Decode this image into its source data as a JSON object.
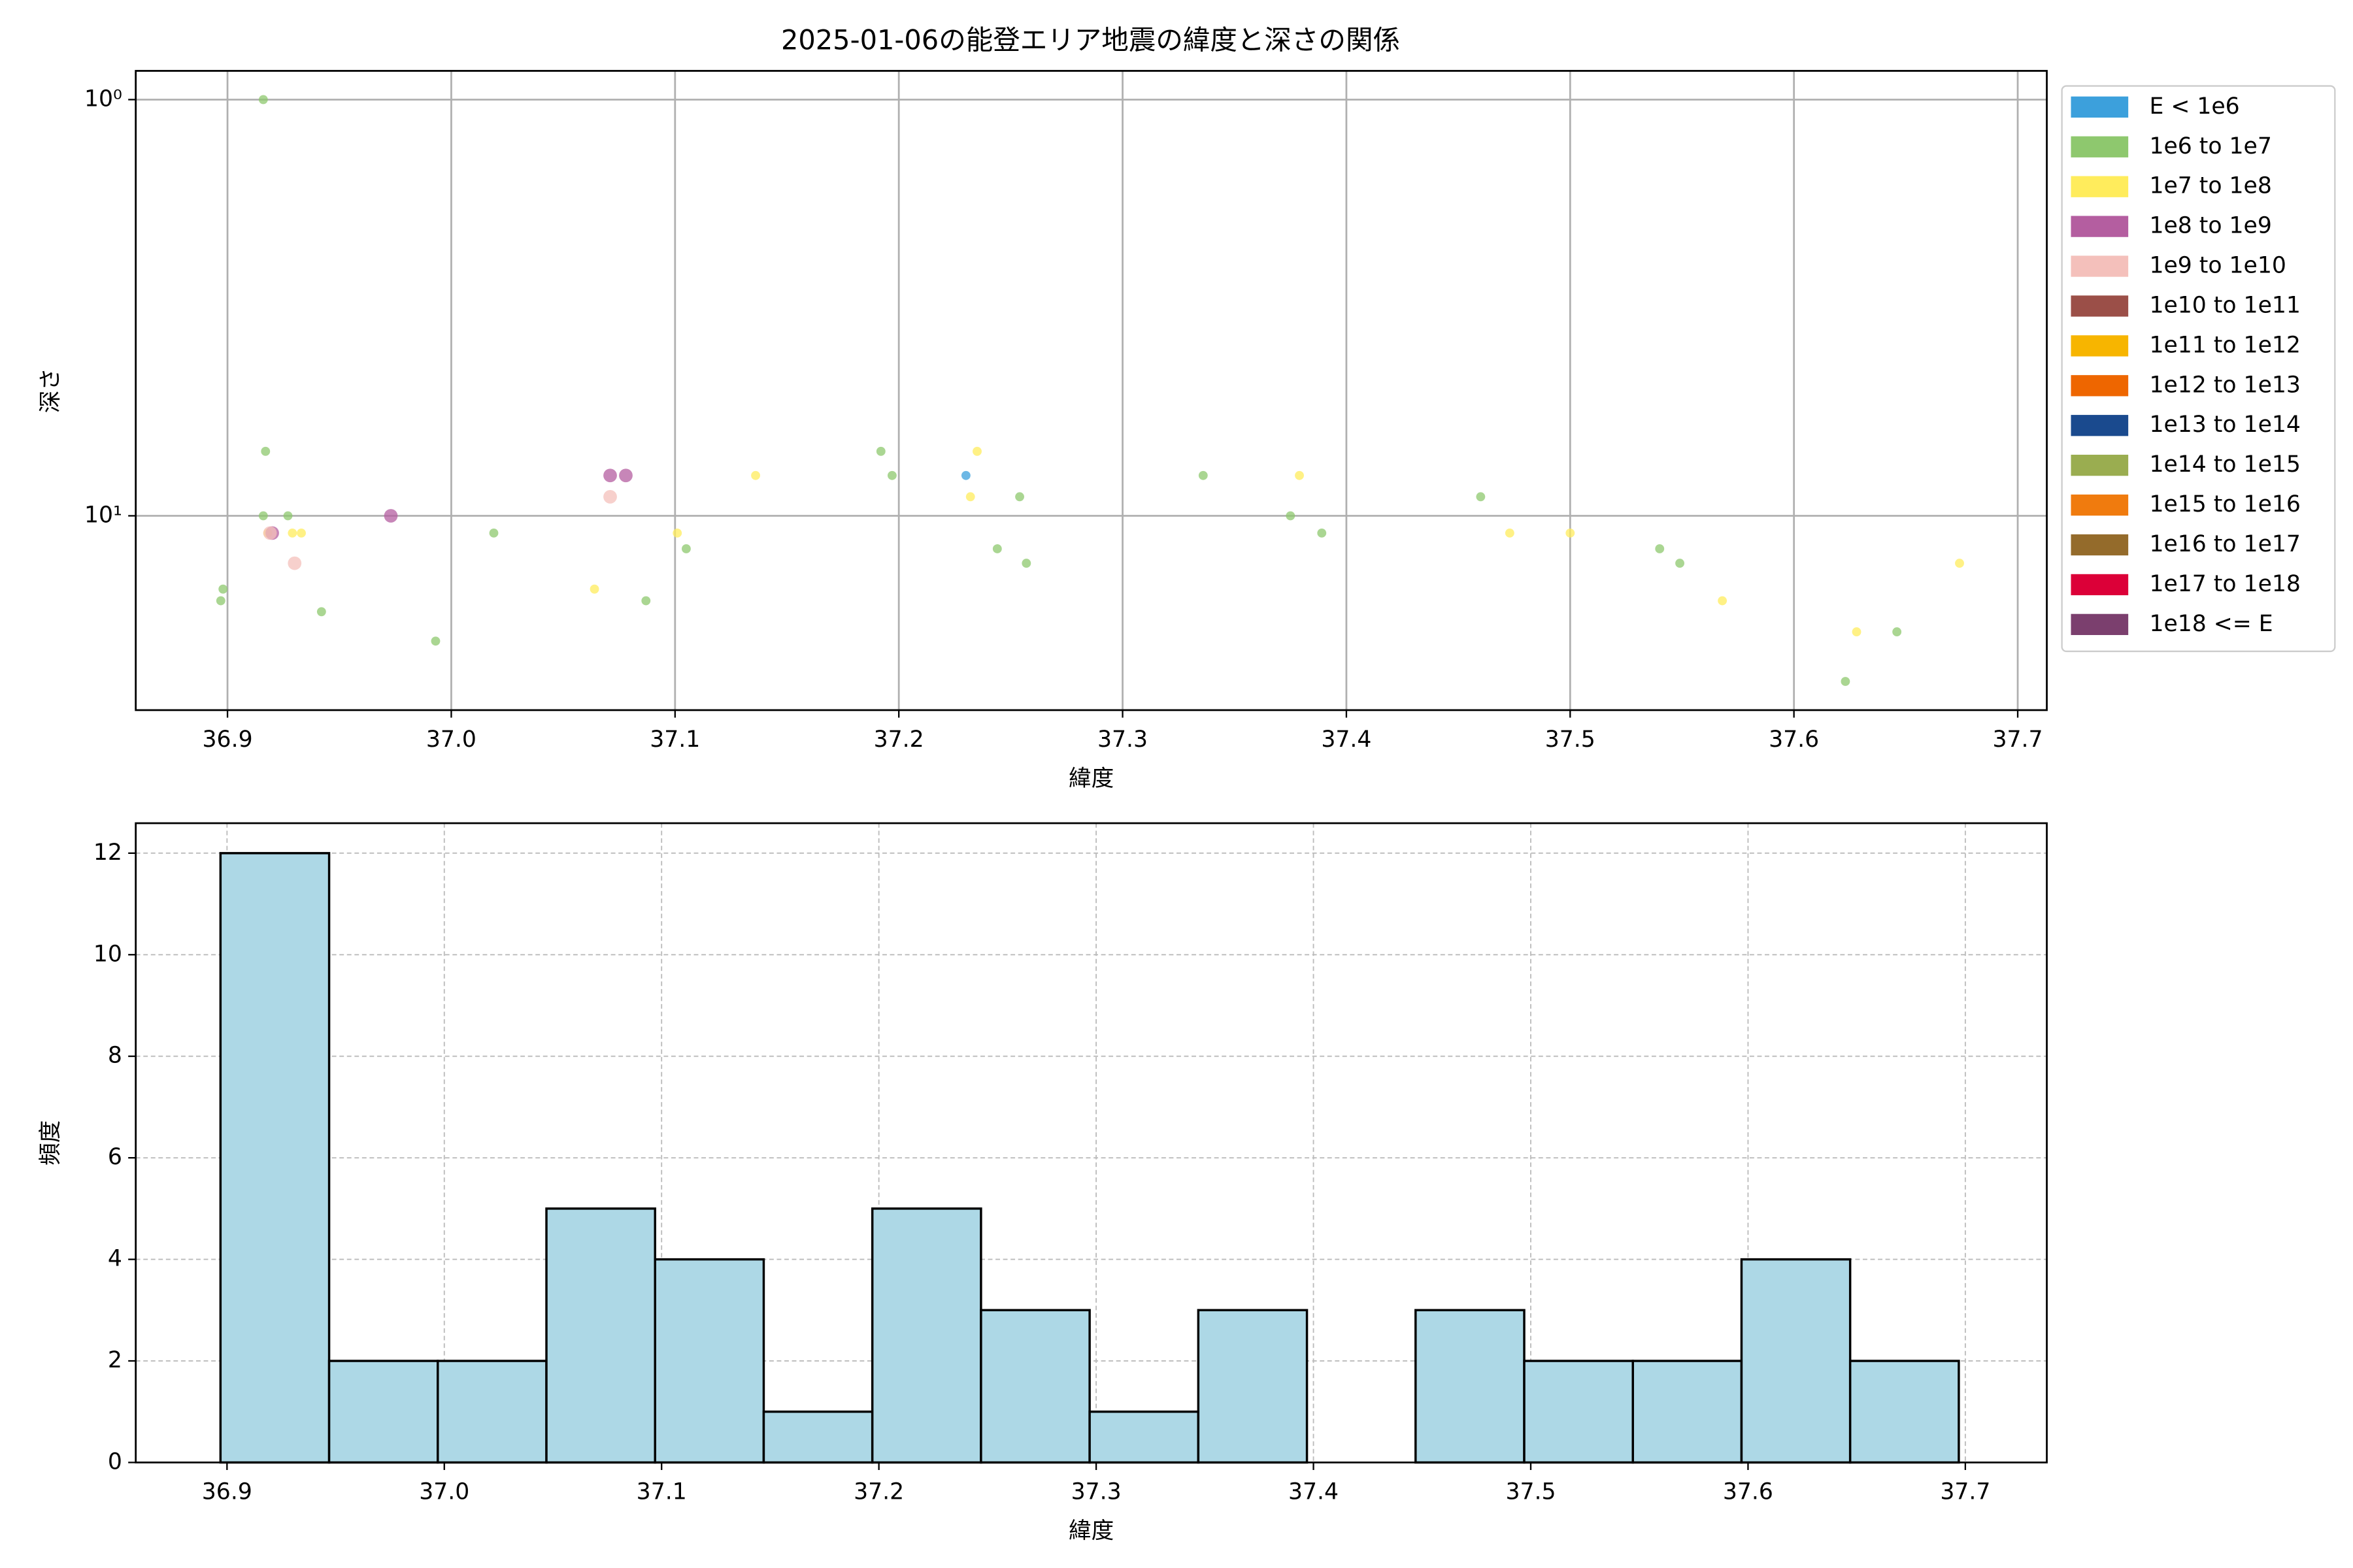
{
  "chart_data": [
    {
      "type": "scatter",
      "title": "2025-01-06の能登エリア地震の緯度と深さの関係",
      "xlabel": "緯度",
      "ylabel": "深さ",
      "xlim": [
        36.859,
        37.713
      ],
      "ylim": [
        29.3,
        0.853
      ],
      "log_y": true,
      "grid": true,
      "legend": "outside upper right",
      "xticks": [
        36.9,
        {
          "value": 37.0,
          "label": "37.0"
        },
        37.1,
        37.2,
        37.3,
        37.4,
        37.5,
        37.6,
        37.7
      ],
      "yticks": [
        {
          "value": 1,
          "label": "10⁰"
        },
        {
          "value": 10,
          "label": "10¹"
        }
      ],
      "series": [
        {
          "name": "E < 1e6",
          "color": "#3ca0dc",
          "x": [
            37.23
          ],
          "values": [
            8
          ]
        },
        {
          "name": "1e6 to 1e7",
          "color": "#8ec86e",
          "x": [
            36.897,
            36.898,
            36.916,
            36.917,
            36.916,
            36.927,
            36.942,
            36.993,
            37.019,
            37.087,
            37.105,
            37.192,
            37.197,
            37.244,
            37.254,
            37.257,
            37.336,
            37.375,
            37.389,
            37.46,
            37.54,
            37.549,
            37.623,
            37.646
          ],
          "values": [
            16,
            15,
            1,
            7,
            10,
            10,
            17,
            20,
            11,
            16,
            12,
            7,
            8,
            12,
            9,
            13,
            8,
            10,
            11,
            9,
            12,
            13,
            25,
            19
          ]
        },
        {
          "name": "1e7 to 1e8",
          "color": "#ffec5c",
          "x": [
            36.918,
            36.929,
            36.933,
            37.064,
            37.101,
            37.136,
            37.232,
            37.235,
            37.379,
            37.473,
            37.5,
            37.568,
            37.628,
            37.674
          ],
          "values": [
            11,
            11,
            11,
            15,
            11,
            8,
            9,
            7,
            8,
            11,
            11,
            16,
            19,
            13
          ]
        },
        {
          "name": "1e8 to 1e9",
          "color": "#b45ea0",
          "x": [
            36.92,
            36.973,
            37.071,
            37.078
          ],
          "values": [
            11,
            10,
            8,
            8
          ]
        },
        {
          "name": "1e9 to 1e10",
          "color": "#f4c0bb",
          "x": [
            36.919,
            36.93,
            37.071
          ],
          "values": [
            11,
            13,
            9
          ]
        },
        {
          "name": "1e10 to 1e11",
          "color": "#9b4f48",
          "x": [],
          "values": []
        },
        {
          "name": "1e11 to 1e12",
          "color": "#f7b500",
          "x": [],
          "values": []
        },
        {
          "name": "1e12 to 1e13",
          "color": "#ee6600",
          "x": [],
          "values": []
        },
        {
          "name": "1e13 to 1e14",
          "color": "#1a4a8e",
          "x": [],
          "values": []
        },
        {
          "name": "1e14 to 1e15",
          "color": "#9aad50",
          "x": [],
          "values": []
        },
        {
          "name": "1e15 to 1e16",
          "color": "#f07b0e",
          "x": [],
          "values": []
        },
        {
          "name": "1e16 to 1e17",
          "color": "#946b2b",
          "x": [],
          "values": []
        },
        {
          "name": "1e17 to 1e18",
          "color": "#dc0038",
          "x": [],
          "values": []
        },
        {
          "name": "1e18 <= E",
          "color": "#7b3f6e",
          "x": [],
          "values": []
        }
      ]
    },
    {
      "type": "histogram",
      "xlabel": "緯度",
      "ylabel": "頻度",
      "xlim": [
        36.858,
        37.7375
      ],
      "ylim": [
        0,
        12.59
      ],
      "grid": true,
      "color": "#add8e6",
      "edgecolor": "#000000",
      "xticks": [
        36.9,
        {
          "value": 37.0,
          "label": "37.0"
        },
        37.1,
        37.2,
        37.3,
        37.4,
        37.5,
        37.6,
        37.7
      ],
      "yticks": [
        0,
        2,
        4,
        6,
        8,
        10,
        12
      ],
      "bins": [
        36.897,
        36.947,
        36.997,
        37.047,
        37.097,
        37.147,
        37.197,
        37.247,
        37.297,
        37.347,
        37.397,
        37.447,
        37.497,
        37.547,
        37.597,
        37.647,
        37.697
      ],
      "values": [
        12,
        2,
        2,
        5,
        4,
        1,
        5,
        3,
        1,
        3,
        0,
        3,
        2,
        2,
        4,
        2
      ]
    }
  ]
}
